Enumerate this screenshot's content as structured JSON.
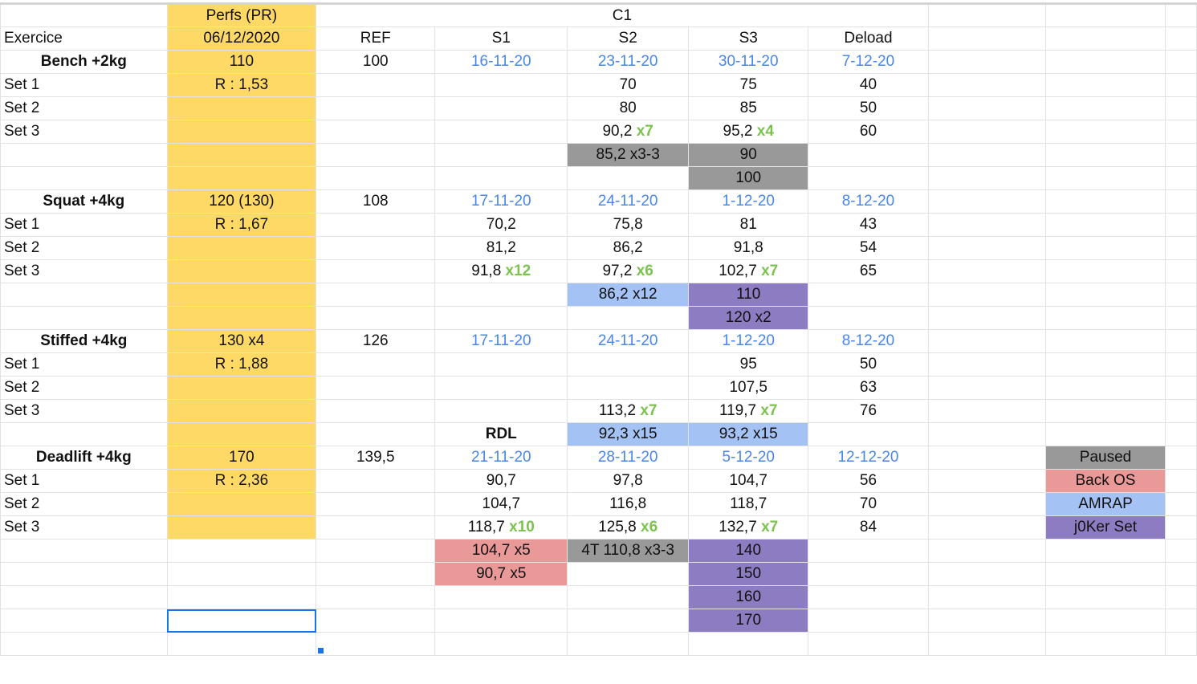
{
  "colors": {
    "yellow": "#ffd966",
    "gray": "#999999",
    "pink": "#ea9999",
    "blue": "#a4c2f4",
    "purple": "#8e7cc3",
    "date_text": "#4a86e8",
    "reps_text": "#7cc24e",
    "selection": "#1a73e8"
  },
  "selected_cell": "B27",
  "rows": [
    {
      "cells": {
        "B": {
          "t": "Perfs (PR)",
          "c": "y"
        },
        "C": {
          "t": "C1",
          "span": 5
        }
      }
    },
    {
      "cells": {
        "A": {
          "t": "Exercice",
          "left": true
        },
        "B": {
          "t": "06/12/2020",
          "c": "y"
        },
        "C": {
          "t": "REF"
        },
        "D": {
          "t": "S1"
        },
        "E": {
          "t": "S2"
        },
        "F": {
          "t": "S3"
        },
        "G": {
          "t": "Deload"
        }
      }
    },
    {
      "cells": {
        "A": {
          "t": "Bench +2kg",
          "bold": true
        },
        "B": {
          "t": "110",
          "c": "y"
        },
        "C": {
          "t": "100"
        },
        "D": {
          "t": "16-11-20",
          "date": true
        },
        "E": {
          "t": "23-11-20",
          "date": true
        },
        "F": {
          "t": "30-11-20",
          "date": true
        },
        "G": {
          "t": "7-12-20",
          "date": true
        }
      }
    },
    {
      "cells": {
        "A": {
          "t": "Set 1",
          "left": true
        },
        "B": {
          "t": "R : 1,53",
          "c": "y"
        },
        "E": {
          "t": "70"
        },
        "F": {
          "t": "75"
        },
        "G": {
          "t": "40"
        }
      }
    },
    {
      "cells": {
        "A": {
          "t": "Set 2",
          "left": true
        },
        "B": {
          "t": "",
          "c": "y"
        },
        "E": {
          "t": "80"
        },
        "F": {
          "t": "85"
        },
        "G": {
          "t": "50"
        }
      }
    },
    {
      "cells": {
        "A": {
          "t": "Set 3",
          "left": true
        },
        "B": {
          "t": "",
          "c": "y"
        },
        "E": {
          "t": "90,2",
          "x": "x7"
        },
        "F": {
          "t": "95,2",
          "x": "x4"
        },
        "G": {
          "t": "60"
        }
      }
    },
    {
      "cells": {
        "B": {
          "t": "",
          "c": "y"
        },
        "E": {
          "t": "85,2 x3-3",
          "c": "gray"
        },
        "F": {
          "t": "90",
          "c": "gray"
        }
      }
    },
    {
      "cells": {
        "B": {
          "t": "",
          "c": "y"
        },
        "F": {
          "t": "100",
          "c": "gray"
        }
      }
    },
    {
      "cells": {
        "A": {
          "t": "Squat +4kg",
          "bold": true
        },
        "B": {
          "t": "120 (130)",
          "c": "y"
        },
        "C": {
          "t": "108"
        },
        "D": {
          "t": "17-11-20",
          "date": true
        },
        "E": {
          "t": "24-11-20",
          "date": true
        },
        "F": {
          "t": "1-12-20",
          "date": true
        },
        "G": {
          "t": "8-12-20",
          "date": true
        }
      }
    },
    {
      "cells": {
        "A": {
          "t": "Set 1",
          "left": true
        },
        "B": {
          "t": "R : 1,67",
          "c": "y"
        },
        "D": {
          "t": "70,2"
        },
        "E": {
          "t": "75,8"
        },
        "F": {
          "t": "81"
        },
        "G": {
          "t": "43"
        }
      }
    },
    {
      "cells": {
        "A": {
          "t": "Set 2",
          "left": true
        },
        "B": {
          "t": "",
          "c": "y"
        },
        "D": {
          "t": "81,2"
        },
        "E": {
          "t": "86,2"
        },
        "F": {
          "t": "91,8"
        },
        "G": {
          "t": "54"
        }
      }
    },
    {
      "cells": {
        "A": {
          "t": "Set 3",
          "left": true
        },
        "B": {
          "t": "",
          "c": "y"
        },
        "D": {
          "t": "91,8",
          "x": "x12"
        },
        "E": {
          "t": "97,2",
          "x": "x6"
        },
        "F": {
          "t": "102,7",
          "x": "x7"
        },
        "G": {
          "t": "65"
        }
      }
    },
    {
      "cells": {
        "B": {
          "t": "",
          "c": "y"
        },
        "E": {
          "t": "86,2 x12",
          "c": "blue"
        },
        "F": {
          "t": "110",
          "c": "purple"
        }
      }
    },
    {
      "cells": {
        "B": {
          "t": "",
          "c": "y"
        },
        "F": {
          "t": "120 x2",
          "c": "purple"
        }
      }
    },
    {
      "cells": {
        "A": {
          "t": "Stiffed +4kg",
          "bold": true
        },
        "B": {
          "t": "130 x4",
          "c": "y"
        },
        "C": {
          "t": "126"
        },
        "D": {
          "t": "17-11-20",
          "date": true
        },
        "E": {
          "t": "24-11-20",
          "date": true
        },
        "F": {
          "t": "1-12-20",
          "date": true
        },
        "G": {
          "t": "8-12-20",
          "date": true
        }
      }
    },
    {
      "cells": {
        "A": {
          "t": "Set 1",
          "left": true
        },
        "B": {
          "t": "R : 1,88",
          "c": "y"
        },
        "F": {
          "t": "95"
        },
        "G": {
          "t": "50"
        }
      }
    },
    {
      "cells": {
        "A": {
          "t": "Set 2",
          "left": true
        },
        "B": {
          "t": "",
          "c": "y"
        },
        "F": {
          "t": "107,5"
        },
        "G": {
          "t": "63"
        }
      }
    },
    {
      "cells": {
        "A": {
          "t": "Set 3",
          "left": true
        },
        "B": {
          "t": "",
          "c": "y"
        },
        "E": {
          "t": "113,2",
          "x": "x7"
        },
        "F": {
          "t": "119,7",
          "x": "x7"
        },
        "G": {
          "t": "76"
        }
      }
    },
    {
      "cells": {
        "B": {
          "t": "",
          "c": "y"
        },
        "D": {
          "t": "RDL",
          "bold": true
        },
        "E": {
          "t": "92,3 x15",
          "c": "blue"
        },
        "F": {
          "t": "93,2 x15",
          "c": "blue"
        }
      }
    },
    {
      "cells": {
        "A": {
          "t": "Deadlift +4kg",
          "bold": true
        },
        "B": {
          "t": "170",
          "c": "y"
        },
        "C": {
          "t": "139,5"
        },
        "D": {
          "t": "21-11-20",
          "date": true
        },
        "E": {
          "t": "28-11-20",
          "date": true
        },
        "F": {
          "t": "5-12-20",
          "date": true
        },
        "G": {
          "t": "12-12-20",
          "date": true
        },
        "I": {
          "t": "Paused",
          "c": "gray"
        }
      }
    },
    {
      "cells": {
        "A": {
          "t": "Set 1",
          "left": true
        },
        "B": {
          "t": "R : 2,36",
          "c": "y"
        },
        "D": {
          "t": "90,7"
        },
        "E": {
          "t": "97,8"
        },
        "F": {
          "t": "104,7"
        },
        "G": {
          "t": "56"
        },
        "I": {
          "t": "Back OS",
          "c": "pink"
        }
      }
    },
    {
      "cells": {
        "A": {
          "t": "Set 2",
          "left": true
        },
        "B": {
          "t": "",
          "c": "y"
        },
        "D": {
          "t": "104,7"
        },
        "E": {
          "t": "116,8"
        },
        "F": {
          "t": "118,7"
        },
        "G": {
          "t": "70"
        },
        "I": {
          "t": "AMRAP",
          "c": "blue"
        }
      }
    },
    {
      "cells": {
        "A": {
          "t": "Set 3",
          "left": true
        },
        "B": {
          "t": "",
          "c": "y"
        },
        "D": {
          "t": "118,7",
          "x": "x10"
        },
        "E": {
          "t": "125,8",
          "x": "x6"
        },
        "F": {
          "t": "132,7",
          "x": "x7"
        },
        "G": {
          "t": "84"
        },
        "I": {
          "t": "j0Ker Set",
          "c": "purple"
        }
      }
    },
    {
      "cells": {
        "D": {
          "t": "104,7 x5",
          "c": "pink"
        },
        "E": {
          "t": "4T 110,8 x3-3",
          "c": "gray"
        },
        "F": {
          "t": "140",
          "c": "purple"
        }
      }
    },
    {
      "cells": {
        "D": {
          "t": "90,7 x5",
          "c": "pink"
        },
        "F": {
          "t": "150",
          "c": "purple"
        }
      }
    },
    {
      "cells": {
        "F": {
          "t": "160",
          "c": "purple"
        }
      }
    },
    {
      "cells": {
        "B": {
          "t": "",
          "sel": true
        },
        "F": {
          "t": "170",
          "c": "purple"
        }
      }
    },
    {
      "cells": {}
    }
  ]
}
